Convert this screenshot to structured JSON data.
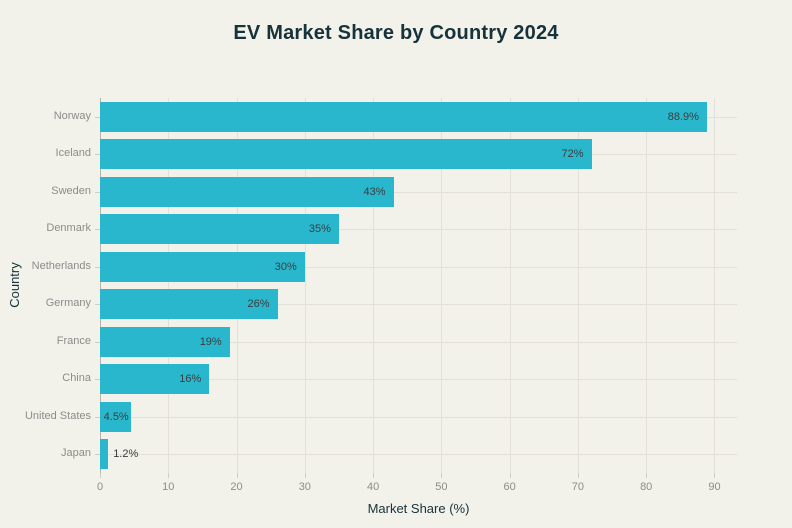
{
  "chart_data": {
    "type": "bar",
    "orientation": "horizontal",
    "title": "EV Market Share by Country 2024",
    "xlabel": "Market Share (%)",
    "ylabel": "Country",
    "categories": [
      "Norway",
      "Iceland",
      "Sweden",
      "Denmark",
      "Netherlands",
      "Germany",
      "France",
      "China",
      "United States",
      "Japan"
    ],
    "values": [
      88.9,
      72,
      43,
      35,
      30,
      26,
      19,
      16,
      4.5,
      1.2
    ],
    "value_labels": [
      "88.9%",
      "72%",
      "43%",
      "35%",
      "30%",
      "26%",
      "19%",
      "16%",
      "4.5%",
      "1.2%"
    ],
    "x_ticks": [
      0,
      10,
      20,
      30,
      40,
      50,
      60,
      70,
      80,
      90
    ],
    "xlim": [
      0,
      93.3
    ],
    "grid": true,
    "legend": "none",
    "colors": {
      "bar": "#29b7cd",
      "background": "#f2f1ea",
      "gridline": "#e2e0d8",
      "zero_line": "#b6b4ac",
      "title_text": "#16323a",
      "axis_title_text": "#16323a",
      "tick_text": "#8c8c8c",
      "value_text": "#3d3d3d"
    }
  }
}
